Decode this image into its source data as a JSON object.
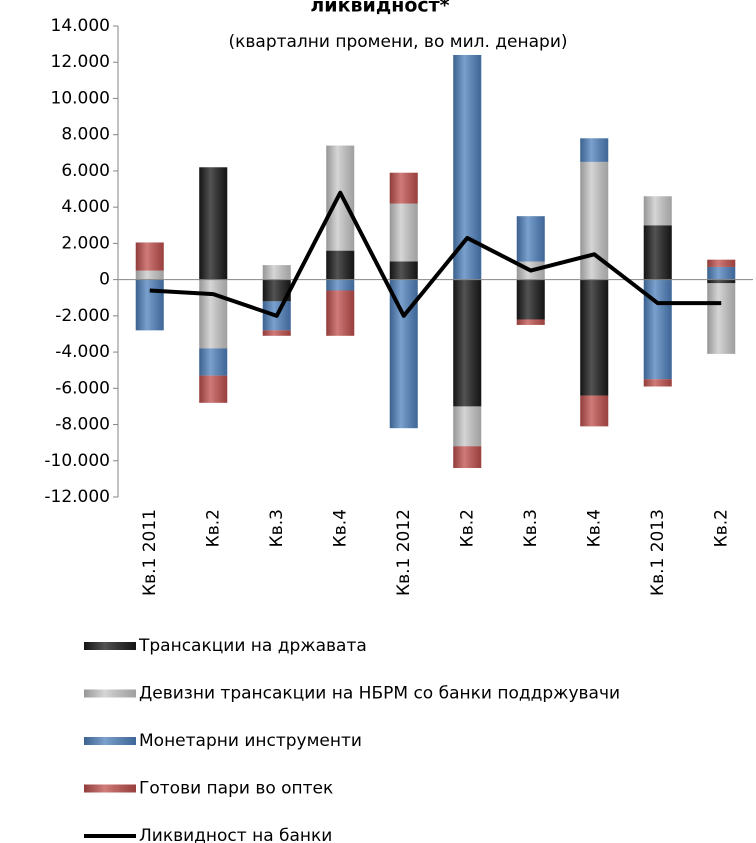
{
  "chart_data": {
    "type": "bar",
    "stacked": true,
    "title": "ликвидност*",
    "subtitle": "(квартални промени, во мил. денари)",
    "categories": [
      "Кв.1 2011",
      "Кв.2",
      "Кв.3",
      "Кв.4",
      "Кв.1 2012",
      "Кв.2",
      "Кв.3",
      "Кв.4",
      "Кв.1 2013",
      "Кв.2"
    ],
    "series": [
      {
        "name": "Трансакции на државата",
        "color": "#1a1a1a",
        "values": [
          0,
          6200,
          -1200,
          1600,
          1000,
          -7000,
          -2200,
          -6400,
          3000,
          -200
        ]
      },
      {
        "name": "Девизни трансакции на НБРМ со банки поддржувачи",
        "color": "#c8c8c8",
        "values": [
          500,
          -3800,
          800,
          5800,
          3200,
          -2200,
          1000,
          6500,
          1600,
          -3900
        ]
      },
      {
        "name": "Монетарни инструменти",
        "color": "#4f81bd",
        "values": [
          -2800,
          -1500,
          -1600,
          -600,
          -8200,
          12400,
          2500,
          1300,
          -5500,
          700
        ]
      },
      {
        "name": "Готови пари во оптек",
        "color": "#c0504d",
        "values": [
          1550,
          -1500,
          -300,
          -2500,
          1700,
          -1200,
          -300,
          -1700,
          -400,
          400
        ]
      },
      {
        "name": "Ликвидност на банки",
        "color": "#000000",
        "type": "line",
        "values": [
          -600,
          -800,
          -2000,
          4800,
          -2000,
          2300,
          500,
          1400,
          -1300,
          -1300
        ]
      }
    ],
    "ylim": [
      -12000,
      14000
    ],
    "yticks": [
      {
        "value": -12000,
        "label": "-12.000"
      },
      {
        "value": -10000,
        "label": "-10.000"
      },
      {
        "value": -8000,
        "label": "-8.000"
      },
      {
        "value": -6000,
        "label": "-6.000"
      },
      {
        "value": -4000,
        "label": "-4.000"
      },
      {
        "value": -2000,
        "label": "-2.000"
      },
      0,
      {
        "value": 2000,
        "label": "2.000"
      },
      {
        "value": 4000,
        "label": "4.000"
      },
      {
        "value": 6000,
        "label": "6.000"
      },
      {
        "value": 8000,
        "label": "8.000"
      },
      {
        "value": 10000,
        "label": "10.000"
      },
      {
        "value": 12000,
        "label": "12.000"
      },
      {
        "value": 14000,
        "label": "14.000"
      }
    ]
  }
}
